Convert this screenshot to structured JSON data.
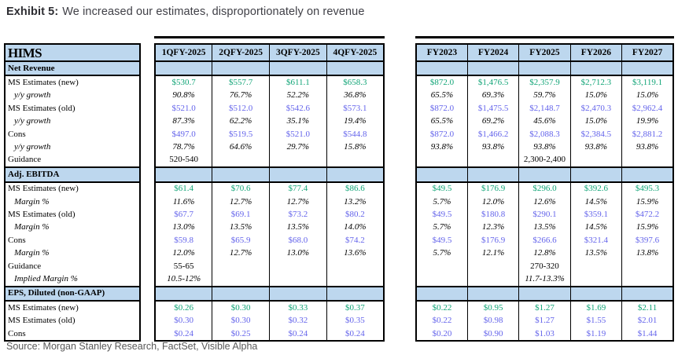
{
  "title": {
    "label": "Exhibit 5:",
    "text": "We increased our estimates, disproportionately on revenue"
  },
  "source": "Source: Morgan Stanley Research, FactSet, Visible Alpha",
  "company": "HIMS",
  "colors": {
    "header_bg": "#BDD7EE",
    "new_estimate_green": "#10A476",
    "old_estimate_blue": "#6464EB",
    "text_black": "#000000",
    "title_gray": "#3F3F46",
    "source_gray": "#595959"
  },
  "columns": {
    "quarters": [
      "1QFY-2025",
      "2QFY-2025",
      "3QFY-2025",
      "4QFY-2025"
    ],
    "years": [
      "FY2023",
      "FY2024",
      "FY2025",
      "FY2026",
      "FY2027"
    ]
  },
  "rows": [
    {
      "kind": "section",
      "label": "Net Revenue",
      "q": [
        "",
        "",
        "",
        ""
      ],
      "fy": [
        "",
        "",
        "",
        "",
        ""
      ]
    },
    {
      "kind": "data",
      "label": "MS Estimates (new)",
      "lstyle": "plain",
      "vstyle": "green",
      "q": [
        "$530.7",
        "$557.7",
        "$611.1",
        "$658.3"
      ],
      "fy": [
        "$872.0",
        "$1,476.5",
        "$2,357.9",
        "$2,712.3",
        "$3,119.1"
      ]
    },
    {
      "kind": "data",
      "label": "y/y growth",
      "lstyle": "italic",
      "vstyle": "italic",
      "q": [
        "90.8%",
        "76.7%",
        "52.2%",
        "36.8%"
      ],
      "fy": [
        "65.5%",
        "69.3%",
        "59.7%",
        "15.0%",
        "15.0%"
      ]
    },
    {
      "kind": "data",
      "label": "MS Estimates (old)",
      "lstyle": "plain",
      "vstyle": "blue",
      "q": [
        "$521.0",
        "$512.0",
        "$542.6",
        "$573.1"
      ],
      "fy": [
        "$872.0",
        "$1,475.5",
        "$2,148.7",
        "$2,470.3",
        "$2,962.4"
      ]
    },
    {
      "kind": "data",
      "label": "y/y growth",
      "lstyle": "italic",
      "vstyle": "italic",
      "q": [
        "87.3%",
        "62.2%",
        "35.1%",
        "19.4%"
      ],
      "fy": [
        "65.5%",
        "69.2%",
        "45.6%",
        "15.0%",
        "19.9%"
      ]
    },
    {
      "kind": "data",
      "label": "Cons",
      "lstyle": "plain",
      "vstyle": "blue",
      "q": [
        "$497.0",
        "$519.5",
        "$521.0",
        "$544.8"
      ],
      "fy": [
        "$872.0",
        "$1,466.2",
        "$2,088.3",
        "$2,384.5",
        "$2,881.2"
      ]
    },
    {
      "kind": "data",
      "label": "y/y growth",
      "lstyle": "italic",
      "vstyle": "italic",
      "q": [
        "78.7%",
        "64.6%",
        "29.7%",
        "15.8%"
      ],
      "fy": [
        "93.8%",
        "93.8%",
        "93.8%",
        "93.8%",
        "93.8%"
      ]
    },
    {
      "kind": "data",
      "label": "Guidance",
      "lstyle": "plain",
      "vstyle": "plain",
      "q": [
        "520-540",
        "",
        "",
        ""
      ],
      "fy": [
        "",
        "",
        "2,300-2,400",
        "",
        ""
      ]
    },
    {
      "kind": "section",
      "label": "Adj. EBITDA",
      "q": [
        "",
        "",
        "",
        ""
      ],
      "fy": [
        "",
        "",
        "",
        "",
        ""
      ]
    },
    {
      "kind": "data",
      "label": "MS Estimates (new)",
      "lstyle": "plain",
      "vstyle": "green",
      "q": [
        "$61.4",
        "$70.6",
        "$77.4",
        "$86.6"
      ],
      "fy": [
        "$49.5",
        "$176.9",
        "$296.0",
        "$392.6",
        "$495.3"
      ]
    },
    {
      "kind": "data",
      "label": "Margin %",
      "lstyle": "italic",
      "vstyle": "italic",
      "q": [
        "11.6%",
        "12.7%",
        "12.7%",
        "13.2%"
      ],
      "fy": [
        "5.7%",
        "12.0%",
        "12.6%",
        "14.5%",
        "15.9%"
      ]
    },
    {
      "kind": "data",
      "label": "MS Estimates (old)",
      "lstyle": "plain",
      "vstyle": "blue",
      "q": [
        "$67.7",
        "$69.1",
        "$73.2",
        "$80.2"
      ],
      "fy": [
        "$49.5",
        "$180.8",
        "$290.1",
        "$359.1",
        "$472.2"
      ]
    },
    {
      "kind": "data",
      "label": "Margin %",
      "lstyle": "italic",
      "vstyle": "italic",
      "q": [
        "13.0%",
        "13.5%",
        "13.5%",
        "14.0%"
      ],
      "fy": [
        "5.7%",
        "12.3%",
        "13.5%",
        "14.5%",
        "15.9%"
      ]
    },
    {
      "kind": "data",
      "label": "Cons",
      "lstyle": "plain",
      "vstyle": "blue",
      "q": [
        "$59.8",
        "$65.9",
        "$68.0",
        "$74.2"
      ],
      "fy": [
        "$49.5",
        "$176.9",
        "$266.6",
        "$321.4",
        "$397.6"
      ]
    },
    {
      "kind": "data",
      "label": "Margin %",
      "lstyle": "italic",
      "vstyle": "italic",
      "q": [
        "12.0%",
        "12.7%",
        "13.0%",
        "13.6%"
      ],
      "fy": [
        "5.7%",
        "12.1%",
        "12.8%",
        "13.5%",
        "13.8%"
      ]
    },
    {
      "kind": "data",
      "label": "Guidance",
      "lstyle": "plain",
      "vstyle": "plain",
      "q": [
        "55-65",
        "",
        "",
        ""
      ],
      "fy": [
        "",
        "",
        "270-320",
        "",
        ""
      ]
    },
    {
      "kind": "data",
      "label": "Implied Margin %",
      "lstyle": "italic",
      "vstyle": "italic",
      "q": [
        "10.5-12%",
        "",
        "",
        ""
      ],
      "fy": [
        "",
        "",
        "11.7-13.3%",
        "",
        ""
      ]
    },
    {
      "kind": "section",
      "label": "EPS, Diluted (non-GAAP)",
      "q": [
        "",
        "",
        "",
        ""
      ],
      "fy": [
        "",
        "",
        "",
        "",
        ""
      ]
    },
    {
      "kind": "data",
      "label": "MS Estimates (new)",
      "lstyle": "plain",
      "vstyle": "green",
      "q": [
        "$0.26",
        "$0.30",
        "$0.33",
        "$0.37"
      ],
      "fy": [
        "$0.22",
        "$0.95",
        "$1.27",
        "$1.69",
        "$2.11"
      ]
    },
    {
      "kind": "data",
      "label": "MS Estimates (old)",
      "lstyle": "plain",
      "vstyle": "blue",
      "q": [
        "$0.30",
        "$0.30",
        "$0.32",
        "$0.35"
      ],
      "fy": [
        "$0.22",
        "$0.98",
        "$1.27",
        "$1.55",
        "$2.01"
      ]
    },
    {
      "kind": "data",
      "label": "Cons",
      "lstyle": "plain",
      "vstyle": "blue",
      "q": [
        "$0.24",
        "$0.25",
        "$0.24",
        "$0.24"
      ],
      "fy": [
        "$0.20",
        "$0.90",
        "$1.03",
        "$1.19",
        "$1.44"
      ]
    }
  ]
}
